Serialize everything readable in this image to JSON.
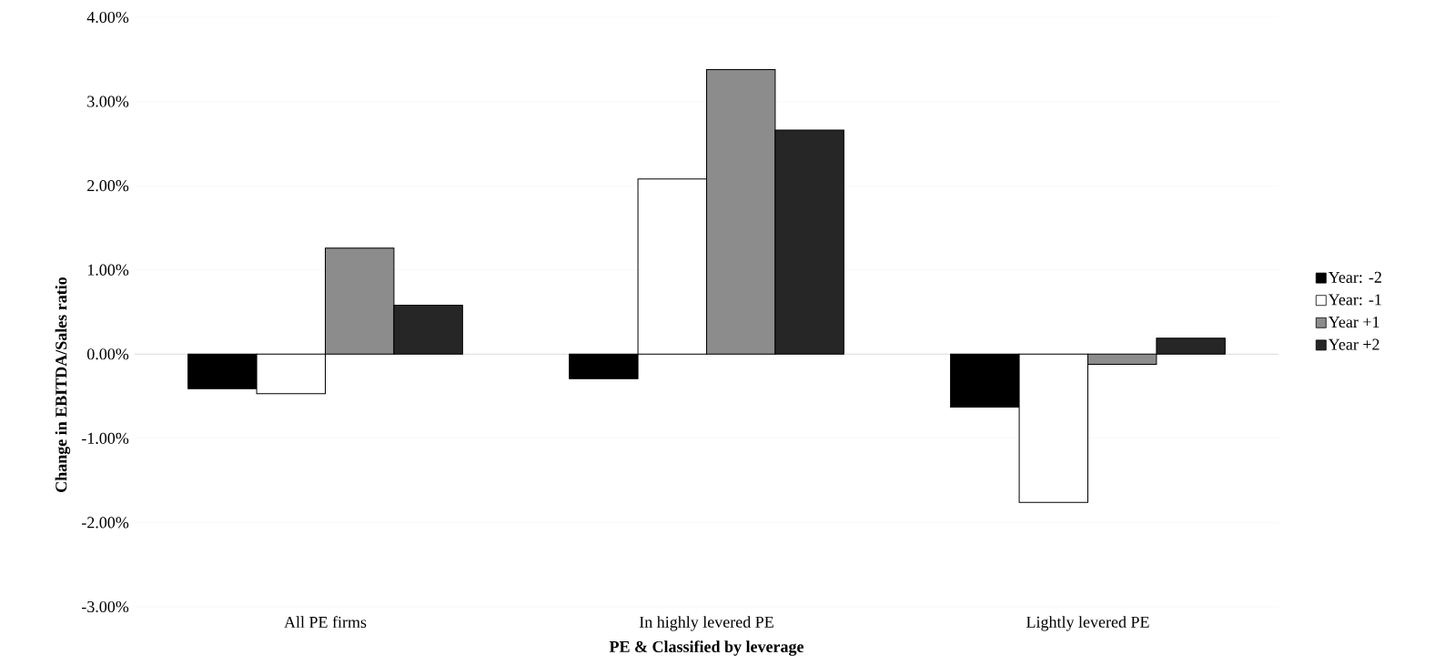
{
  "chart_data": {
    "type": "bar",
    "xlabel": "PE & Classified by leverage",
    "ylabel": "Change in EBITDA/Sales ratio",
    "categories": [
      "All PE firms",
      "In highly levered PE",
      "Lightly levered PE"
    ],
    "series": [
      {
        "name": "Year: -2",
        "color": "#000000",
        "values": [
          -0.41,
          -0.29,
          -0.63
        ]
      },
      {
        "name": "Year: -1",
        "color": "#ffffff",
        "values": [
          -0.47,
          2.08,
          -1.76
        ]
      },
      {
        "name": "Year +1",
        "color": "#8c8c8c",
        "values": [
          1.26,
          3.38,
          -0.12
        ]
      },
      {
        "name": "Year +2",
        "color": "#262626",
        "values": [
          0.58,
          2.66,
          0.19
        ]
      }
    ],
    "ylim": [
      -3,
      4
    ],
    "yticks": [
      {
        "value": -3,
        "label": "-3.00%"
      },
      {
        "value": -2,
        "label": "-2.00%"
      },
      {
        "value": -1,
        "label": "-1.00%"
      },
      {
        "value": 0,
        "label": "0.00%"
      },
      {
        "value": 1,
        "label": "1.00%"
      },
      {
        "value": 2,
        "label": "2.00%"
      },
      {
        "value": 3,
        "label": "3.00%"
      },
      {
        "value": 4,
        "label": "4.00%"
      }
    ],
    "grid": "y",
    "legend": "right"
  }
}
